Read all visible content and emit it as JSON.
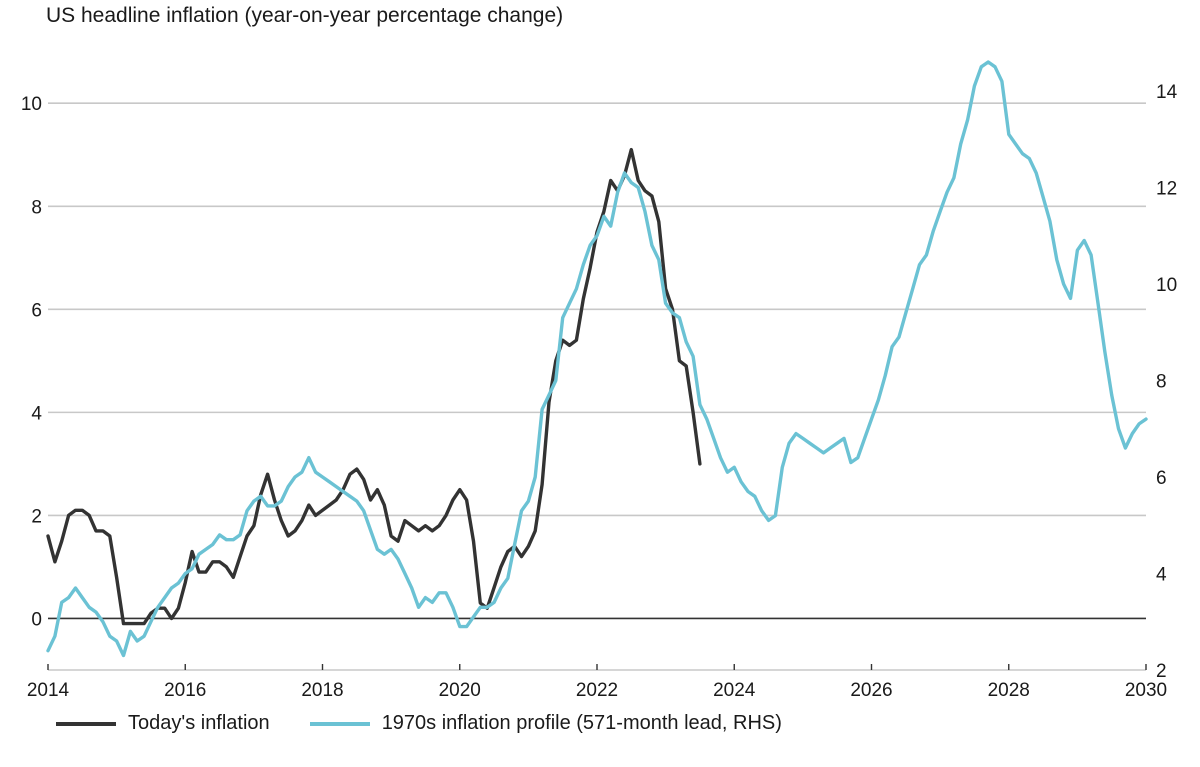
{
  "chart_data": {
    "type": "line",
    "title": "US headline inflation (year-on-year percentage change)",
    "x_ticks": [
      "2014",
      "2016",
      "2018",
      "2020",
      "2022",
      "2024",
      "2026",
      "2028",
      "2030"
    ],
    "x_range": [
      2014,
      2030
    ],
    "y_left_ticks": [
      "0",
      "2",
      "4",
      "6",
      "8",
      "10"
    ],
    "y_left_range": [
      -1,
      10.8
    ],
    "y_right_ticks": [
      "2",
      "4",
      "6",
      "8",
      "10",
      "12",
      "14"
    ],
    "y_right_range": [
      2,
      14.6
    ],
    "grid": true,
    "legend_position": "bottom",
    "colors": {
      "today": "#333333",
      "seventies": "#6bc2d4",
      "grid": "#c8c8c8",
      "zero": "#333333"
    },
    "series": [
      {
        "name": "Today's inflation",
        "axis": "left",
        "color": "#333333",
        "points": [
          [
            2014.0,
            1.6
          ],
          [
            2014.1,
            1.1
          ],
          [
            2014.2,
            1.5
          ],
          [
            2014.3,
            2.0
          ],
          [
            2014.4,
            2.1
          ],
          [
            2014.5,
            2.1
          ],
          [
            2014.6,
            2.0
          ],
          [
            2014.7,
            1.7
          ],
          [
            2014.8,
            1.7
          ],
          [
            2014.9,
            1.6
          ],
          [
            2015.0,
            0.8
          ],
          [
            2015.1,
            -0.1
          ],
          [
            2015.2,
            -0.1
          ],
          [
            2015.3,
            -0.1
          ],
          [
            2015.4,
            -0.1
          ],
          [
            2015.5,
            0.1
          ],
          [
            2015.6,
            0.2
          ],
          [
            2015.7,
            0.2
          ],
          [
            2015.8,
            0.0
          ],
          [
            2015.9,
            0.2
          ],
          [
            2016.0,
            0.7
          ],
          [
            2016.1,
            1.3
          ],
          [
            2016.2,
            0.9
          ],
          [
            2016.3,
            0.9
          ],
          [
            2016.4,
            1.1
          ],
          [
            2016.5,
            1.1
          ],
          [
            2016.6,
            1.0
          ],
          [
            2016.7,
            0.8
          ],
          [
            2016.8,
            1.2
          ],
          [
            2016.9,
            1.6
          ],
          [
            2017.0,
            1.8
          ],
          [
            2017.1,
            2.4
          ],
          [
            2017.2,
            2.8
          ],
          [
            2017.3,
            2.3
          ],
          [
            2017.4,
            1.9
          ],
          [
            2017.5,
            1.6
          ],
          [
            2017.6,
            1.7
          ],
          [
            2017.7,
            1.9
          ],
          [
            2017.8,
            2.2
          ],
          [
            2017.9,
            2.0
          ],
          [
            2018.0,
            2.1
          ],
          [
            2018.1,
            2.2
          ],
          [
            2018.2,
            2.3
          ],
          [
            2018.3,
            2.5
          ],
          [
            2018.4,
            2.8
          ],
          [
            2018.5,
            2.9
          ],
          [
            2018.6,
            2.7
          ],
          [
            2018.7,
            2.3
          ],
          [
            2018.8,
            2.5
          ],
          [
            2018.9,
            2.2
          ],
          [
            2019.0,
            1.6
          ],
          [
            2019.1,
            1.5
          ],
          [
            2019.2,
            1.9
          ],
          [
            2019.3,
            1.8
          ],
          [
            2019.4,
            1.7
          ],
          [
            2019.5,
            1.8
          ],
          [
            2019.6,
            1.7
          ],
          [
            2019.7,
            1.8
          ],
          [
            2019.8,
            2.0
          ],
          [
            2019.9,
            2.3
          ],
          [
            2020.0,
            2.5
          ],
          [
            2020.1,
            2.3
          ],
          [
            2020.2,
            1.5
          ],
          [
            2020.3,
            0.3
          ],
          [
            2020.4,
            0.2
          ],
          [
            2020.5,
            0.6
          ],
          [
            2020.6,
            1.0
          ],
          [
            2020.7,
            1.3
          ],
          [
            2020.8,
            1.4
          ],
          [
            2020.9,
            1.2
          ],
          [
            2021.0,
            1.4
          ],
          [
            2021.1,
            1.7
          ],
          [
            2021.2,
            2.6
          ],
          [
            2021.3,
            4.2
          ],
          [
            2021.4,
            5.0
          ],
          [
            2021.5,
            5.4
          ],
          [
            2021.6,
            5.3
          ],
          [
            2021.7,
            5.4
          ],
          [
            2021.8,
            6.2
          ],
          [
            2021.9,
            6.8
          ],
          [
            2022.0,
            7.5
          ],
          [
            2022.1,
            7.9
          ],
          [
            2022.2,
            8.5
          ],
          [
            2022.3,
            8.3
          ],
          [
            2022.4,
            8.6
          ],
          [
            2022.5,
            9.1
          ],
          [
            2022.6,
            8.5
          ],
          [
            2022.7,
            8.3
          ],
          [
            2022.8,
            8.2
          ],
          [
            2022.9,
            7.7
          ],
          [
            2023.0,
            6.4
          ],
          [
            2023.1,
            6.0
          ],
          [
            2023.2,
            5.0
          ],
          [
            2023.3,
            4.9
          ],
          [
            2023.4,
            4.0
          ],
          [
            2023.5,
            3.0
          ]
        ]
      },
      {
        "name": "1970s inflation profile (571-month lead, RHS)",
        "axis": "right",
        "color": "#6bc2d4",
        "points": [
          [
            2014.0,
            2.4
          ],
          [
            2014.1,
            2.7
          ],
          [
            2014.2,
            3.4
          ],
          [
            2014.3,
            3.5
          ],
          [
            2014.4,
            3.7
          ],
          [
            2014.5,
            3.5
          ],
          [
            2014.6,
            3.3
          ],
          [
            2014.7,
            3.2
          ],
          [
            2014.8,
            3.0
          ],
          [
            2014.9,
            2.7
          ],
          [
            2015.0,
            2.6
          ],
          [
            2015.1,
            2.3
          ],
          [
            2015.2,
            2.8
          ],
          [
            2015.3,
            2.6
          ],
          [
            2015.4,
            2.7
          ],
          [
            2015.5,
            3.0
          ],
          [
            2015.6,
            3.3
          ],
          [
            2015.7,
            3.5
          ],
          [
            2015.8,
            3.7
          ],
          [
            2015.9,
            3.8
          ],
          [
            2016.0,
            4.0
          ],
          [
            2016.1,
            4.1
          ],
          [
            2016.2,
            4.4
          ],
          [
            2016.3,
            4.5
          ],
          [
            2016.4,
            4.6
          ],
          [
            2016.5,
            4.8
          ],
          [
            2016.6,
            4.7
          ],
          [
            2016.7,
            4.7
          ],
          [
            2016.8,
            4.8
          ],
          [
            2016.9,
            5.3
          ],
          [
            2017.0,
            5.5
          ],
          [
            2017.1,
            5.6
          ],
          [
            2017.2,
            5.4
          ],
          [
            2017.3,
            5.4
          ],
          [
            2017.4,
            5.5
          ],
          [
            2017.5,
            5.8
          ],
          [
            2017.6,
            6.0
          ],
          [
            2017.7,
            6.1
          ],
          [
            2017.8,
            6.4
          ],
          [
            2017.9,
            6.1
          ],
          [
            2018.0,
            6.0
          ],
          [
            2018.1,
            5.9
          ],
          [
            2018.2,
            5.8
          ],
          [
            2018.3,
            5.7
          ],
          [
            2018.4,
            5.6
          ],
          [
            2018.5,
            5.5
          ],
          [
            2018.6,
            5.3
          ],
          [
            2018.7,
            4.9
          ],
          [
            2018.8,
            4.5
          ],
          [
            2018.9,
            4.4
          ],
          [
            2019.0,
            4.5
          ],
          [
            2019.1,
            4.3
          ],
          [
            2019.2,
            4.0
          ],
          [
            2019.3,
            3.7
          ],
          [
            2019.4,
            3.3
          ],
          [
            2019.5,
            3.5
          ],
          [
            2019.6,
            3.4
          ],
          [
            2019.7,
            3.6
          ],
          [
            2019.8,
            3.6
          ],
          [
            2019.9,
            3.3
          ],
          [
            2020.0,
            2.9
          ],
          [
            2020.1,
            2.9
          ],
          [
            2020.2,
            3.1
          ],
          [
            2020.3,
            3.3
          ],
          [
            2020.4,
            3.3
          ],
          [
            2020.5,
            3.4
          ],
          [
            2020.6,
            3.7
          ],
          [
            2020.7,
            3.9
          ],
          [
            2020.8,
            4.6
          ],
          [
            2020.9,
            5.3
          ],
          [
            2021.0,
            5.5
          ],
          [
            2021.1,
            6.0
          ],
          [
            2021.2,
            7.4
          ],
          [
            2021.3,
            7.7
          ],
          [
            2021.4,
            8.0
          ],
          [
            2021.5,
            9.3
          ],
          [
            2021.6,
            9.6
          ],
          [
            2021.7,
            9.9
          ],
          [
            2021.8,
            10.4
          ],
          [
            2021.9,
            10.8
          ],
          [
            2022.0,
            11.0
          ],
          [
            2022.1,
            11.4
          ],
          [
            2022.2,
            11.2
          ],
          [
            2022.3,
            11.9
          ],
          [
            2022.4,
            12.3
          ],
          [
            2022.5,
            12.1
          ],
          [
            2022.6,
            12.0
          ],
          [
            2022.7,
            11.5
          ],
          [
            2022.8,
            10.8
          ],
          [
            2022.9,
            10.5
          ],
          [
            2023.0,
            9.6
          ],
          [
            2023.1,
            9.4
          ],
          [
            2023.2,
            9.3
          ],
          [
            2023.3,
            8.8
          ],
          [
            2023.4,
            8.5
          ],
          [
            2023.5,
            7.5
          ],
          [
            2023.6,
            7.2
          ],
          [
            2023.7,
            6.8
          ],
          [
            2023.8,
            6.4
          ],
          [
            2023.9,
            6.1
          ],
          [
            2024.0,
            6.2
          ],
          [
            2024.1,
            5.9
          ],
          [
            2024.2,
            5.7
          ],
          [
            2024.3,
            5.6
          ],
          [
            2024.4,
            5.3
          ],
          [
            2024.5,
            5.1
          ],
          [
            2024.6,
            5.2
          ],
          [
            2024.7,
            6.2
          ],
          [
            2024.8,
            6.7
          ],
          [
            2024.9,
            6.9
          ],
          [
            2025.0,
            6.8
          ],
          [
            2025.1,
            6.7
          ],
          [
            2025.2,
            6.6
          ],
          [
            2025.3,
            6.5
          ],
          [
            2025.4,
            6.6
          ],
          [
            2025.5,
            6.7
          ],
          [
            2025.6,
            6.8
          ],
          [
            2025.7,
            6.3
          ],
          [
            2025.8,
            6.4
          ],
          [
            2025.9,
            6.8
          ],
          [
            2026.0,
            7.2
          ],
          [
            2026.1,
            7.6
          ],
          [
            2026.2,
            8.1
          ],
          [
            2026.3,
            8.7
          ],
          [
            2026.4,
            8.9
          ],
          [
            2026.5,
            9.4
          ],
          [
            2026.6,
            9.9
          ],
          [
            2026.7,
            10.4
          ],
          [
            2026.8,
            10.6
          ],
          [
            2026.9,
            11.1
          ],
          [
            2027.0,
            11.5
          ],
          [
            2027.1,
            11.9
          ],
          [
            2027.2,
            12.2
          ],
          [
            2027.3,
            12.9
          ],
          [
            2027.4,
            13.4
          ],
          [
            2027.5,
            14.1
          ],
          [
            2027.6,
            14.5
          ],
          [
            2027.7,
            14.6
          ],
          [
            2027.8,
            14.5
          ],
          [
            2027.9,
            14.2
          ],
          [
            2028.0,
            13.1
          ],
          [
            2028.1,
            12.9
          ],
          [
            2028.2,
            12.7
          ],
          [
            2028.3,
            12.6
          ],
          [
            2028.4,
            12.3
          ],
          [
            2028.5,
            11.8
          ],
          [
            2028.6,
            11.3
          ],
          [
            2028.7,
            10.5
          ],
          [
            2028.8,
            10.0
          ],
          [
            2028.9,
            9.7
          ],
          [
            2029.0,
            10.7
          ],
          [
            2029.1,
            10.9
          ],
          [
            2029.2,
            10.6
          ],
          [
            2029.3,
            9.6
          ],
          [
            2029.4,
            8.6
          ],
          [
            2029.5,
            7.7
          ],
          [
            2029.6,
            7.0
          ],
          [
            2029.7,
            6.6
          ],
          [
            2029.8,
            6.9
          ],
          [
            2029.9,
            7.1
          ],
          [
            2030.0,
            7.2
          ]
        ]
      }
    ]
  }
}
